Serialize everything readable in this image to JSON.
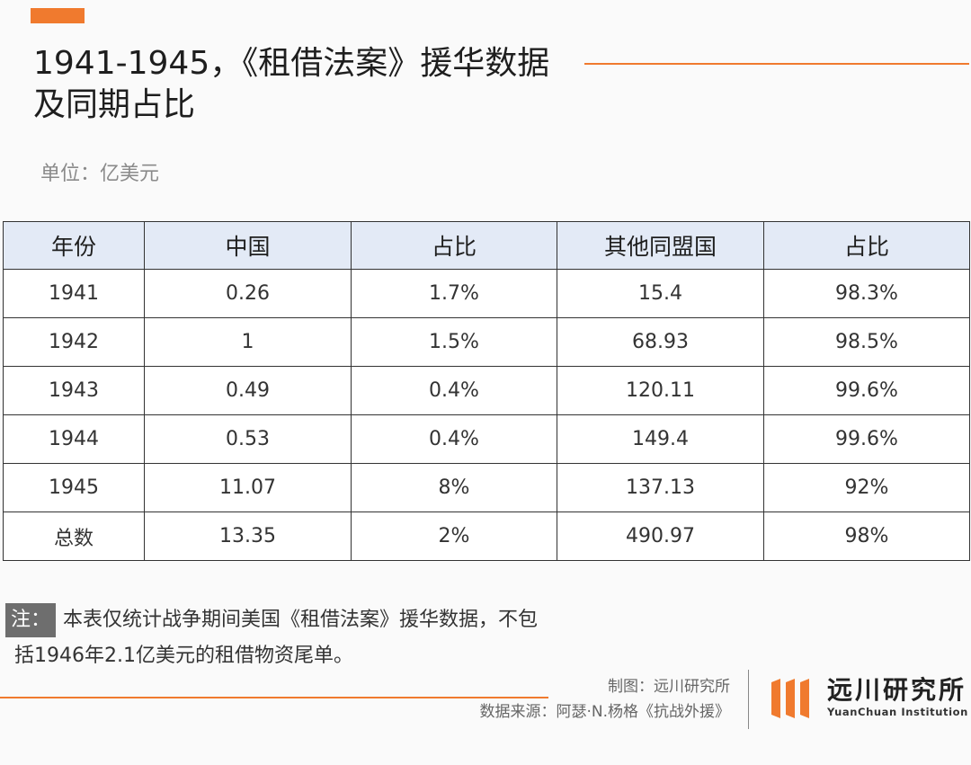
{
  "title": "1941-1945，《租借法案》援华数据及同期占比",
  "unit": "单位：亿美元",
  "table": {
    "headers": [
      "年份",
      "中国",
      "占比",
      "其他同盟国",
      "占比"
    ],
    "rows": [
      [
        "1941",
        "0.26",
        "1.7%",
        "15.4",
        "98.3%"
      ],
      [
        "1942",
        "1",
        "1.5%",
        "68.93",
        "98.5%"
      ],
      [
        "1943",
        "0.49",
        "0.4%",
        "120.11",
        "99.6%"
      ],
      [
        "1944",
        "0.53",
        "0.4%",
        "149.4",
        "99.6%"
      ],
      [
        "1945",
        "11.07",
        "8%",
        "137.13",
        "92%"
      ],
      [
        "总数",
        "13.35",
        "2%",
        "490.97",
        "98%"
      ]
    ]
  },
  "note": {
    "tag": "注：",
    "line1": "本表仅统计战争期间美国《租借法案》援华数据，不包",
    "line2": "括1946年2.1亿美元的租借物资尾单。"
  },
  "credits": {
    "chart_by": "制图：远川研究所",
    "source": "数据来源：阿瑟·N.杨格《抗战外援》"
  },
  "logo": {
    "name_cn": "远川研究所",
    "name_en": "YuanChuan Institution",
    "icon": "yuanchuan-logo-icon"
  },
  "colors": {
    "accent": "#f07a2e",
    "header_bg": "#e3eaf6",
    "note_tag_bg": "#6e6e6e"
  }
}
